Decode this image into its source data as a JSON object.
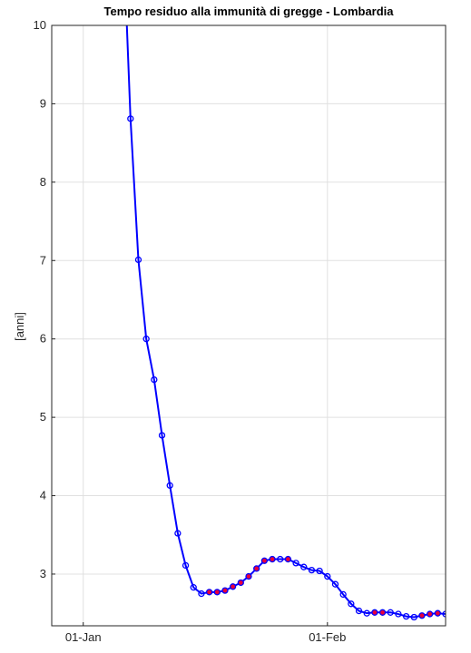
{
  "chart_data": {
    "type": "line",
    "title": "Tempo residuo alla immunità di gregge - Lombardia",
    "y_label": "[anni]",
    "x": [
      "06-Jan",
      "07-Jan",
      "08-Jan",
      "09-Jan",
      "10-Jan",
      "11-Jan",
      "12-Jan",
      "13-Jan",
      "14-Jan",
      "15-Jan",
      "16-Jan",
      "17-Jan",
      "18-Jan",
      "19-Jan",
      "20-Jan",
      "21-Jan",
      "22-Jan",
      "23-Jan",
      "24-Jan",
      "25-Jan",
      "26-Jan",
      "27-Jan",
      "28-Jan",
      "29-Jan",
      "30-Jan",
      "31-Jan",
      "01-Feb",
      "02-Feb",
      "03-Feb",
      "04-Feb",
      "05-Feb",
      "06-Feb",
      "07-Feb",
      "08-Feb",
      "09-Feb",
      "10-Feb",
      "11-Feb",
      "12-Feb",
      "13-Feb",
      "14-Feb",
      "15-Feb",
      "16-Feb"
    ],
    "series": [
      {
        "color": "#0000ff",
        "values": [
          11.37,
          8.81,
          7.01,
          6.0,
          5.48,
          4.77,
          4.13,
          3.52,
          3.11,
          2.83,
          2.75,
          2.77,
          2.77,
          2.79,
          2.84,
          2.89,
          2.97,
          3.07,
          3.17,
          3.19,
          3.19,
          3.19,
          3.14,
          3.09,
          3.05,
          3.04,
          2.97,
          2.87,
          2.74,
          2.62,
          2.53,
          2.5,
          2.51,
          2.51,
          2.51,
          2.49,
          2.46,
          2.45,
          2.47,
          2.49,
          2.5,
          2.49
        ],
        "marker_fills": [
          "none",
          "none",
          "none",
          "none",
          "none",
          "none",
          "none",
          "none",
          "none",
          "none",
          "none",
          "#e8003a",
          "#e8003a",
          "#e8003a",
          "#e8003a",
          "#e8003a",
          "#e8003a",
          "#e8003a",
          "#e8003a",
          "#e8003a",
          "none",
          "#e8003a",
          "none",
          "none",
          "none",
          "none",
          "none",
          "none",
          "none",
          "none",
          "none",
          "none",
          "#e8003a",
          "#e8003a",
          "none",
          "none",
          "none",
          "none",
          "#e8003a",
          "#e8003a",
          "#e8003a",
          "none"
        ]
      }
    ],
    "xlim": [
      "28-Dec",
      "16-Feb"
    ],
    "xticks": [
      "01-Jan",
      "01-Feb"
    ],
    "ylim": [
      2.34,
      10
    ],
    "yticks": [
      3,
      4,
      5,
      6,
      7,
      8,
      9,
      10
    ],
    "grid": true
  }
}
